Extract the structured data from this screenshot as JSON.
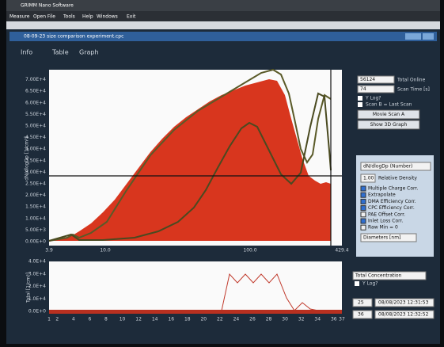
{
  "window": {
    "app_title": "GRIMM Nano Software",
    "menu": [
      "Measure",
      "Open File",
      "Tools",
      "Help",
      "Windows",
      "Exit"
    ],
    "document_title": "08-09-23 size comparison experiment.cpc",
    "tabs": [
      "Info",
      "Table",
      "Graph"
    ]
  },
  "size_plot": {
    "y_label": "dN/dlogDp [1/cm³]",
    "y_ticks": [
      "0.00E+0",
      "5.00E+3",
      "1.00E+4",
      "1.50E+4",
      "2.00E+4",
      "2.50E+4",
      "3.00E+4",
      "3.50E+4",
      "4.00E+4",
      "4.50E+4",
      "5.00E+4",
      "5.50E+4",
      "6.00E+4",
      "6.50E+4",
      "7.00E+4"
    ],
    "x_ticks": [
      "3.9",
      "10.0",
      "100.0",
      "429.4"
    ]
  },
  "side_panel": {
    "total_value": "56124",
    "total_label": "Total Online",
    "scan_time_value": "74",
    "scan_time_label": "Scan Time [s]",
    "y_log": "Y Log?",
    "scan_b": "Scan B = Last Scan",
    "movie_button": "Movie Scan A",
    "show3d_button": "Show 3D Graph",
    "quantity": "dN/dlogDp (Number)",
    "density_value": "1.00",
    "density_label": "Relative Density",
    "options": [
      "Multiple Charge Corr.",
      "Extrapolate",
      "DMA Efficiency Corr.",
      "CPC Efficiency Corr.",
      "PAE Offset Corr.",
      "Inlet Loss Corr.",
      "Raw Min = 0"
    ],
    "diameter_unit": "Diameters [nm]"
  },
  "total_plot": {
    "y_label": "Total [1/cm³]",
    "y_ticks": [
      "0.0E+0",
      "1.0E+4",
      "2.0E+4",
      "3.0E+4",
      "4.0E+4"
    ],
    "x_ticks": [
      "1",
      "2",
      "4",
      "6",
      "8",
      "10",
      "12",
      "14",
      "16",
      "18",
      "20",
      "22",
      "24",
      "26",
      "28",
      "30",
      "32",
      "34",
      "36",
      "37"
    ]
  },
  "bottom_panel": {
    "quantity": "Total Concentration",
    "y_log": "Y Log?",
    "scan_a": "25",
    "scan_a_time": "08/08/2023 12:31:53",
    "scan_b": "36",
    "scan_b_time": "08/08/2023 12:32:52"
  }
}
